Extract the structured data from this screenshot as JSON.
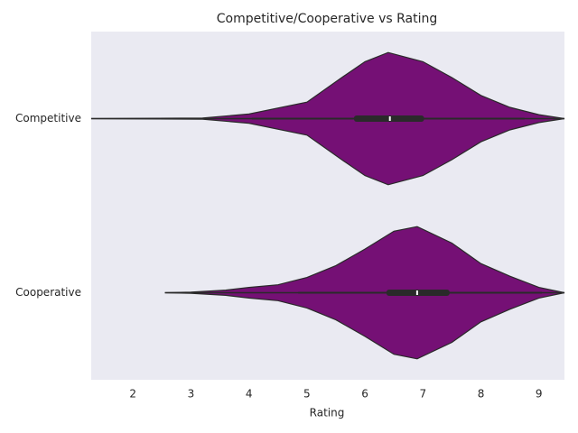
{
  "chart_data": {
    "type": "violin",
    "title": "Competitive/Cooperative vs Rating",
    "xlabel": "Rating",
    "categories": [
      "Competitive",
      "Cooperative"
    ],
    "color": "#751075",
    "xlim": [
      1.28,
      9.44
    ],
    "xticks": [
      2,
      3,
      4,
      5,
      6,
      7,
      8,
      9
    ],
    "grid": false,
    "violins": [
      {
        "grid": [
          1.28,
          3.2,
          4,
          5,
          5.6,
          6,
          6.4,
          7,
          7.5,
          8,
          8.5,
          9,
          9.44
        ],
        "density": [
          0,
          0.01,
          0.07,
          0.25,
          0.62,
          0.86,
          1,
          0.86,
          0.62,
          0.35,
          0.17,
          0.06,
          0
        ],
        "q1": 5.81,
        "median": 6.43,
        "q3": 7.02,
        "whisker": [
          4.05,
          8.75
        ]
      },
      {
        "grid": [
          2.55,
          3,
          3.6,
          4,
          4.5,
          5,
          5.5,
          6,
          6.5,
          6.9,
          7.5,
          8,
          8.5,
          9,
          9.44
        ],
        "density": [
          0,
          0.01,
          0.04,
          0.08,
          0.12,
          0.23,
          0.41,
          0.66,
          0.93,
          1,
          0.75,
          0.44,
          0.25,
          0.08,
          0
        ],
        "q1": 6.37,
        "median": 6.9,
        "q3": 7.46,
        "whisker": [
          4.85,
          9.05
        ]
      }
    ]
  }
}
